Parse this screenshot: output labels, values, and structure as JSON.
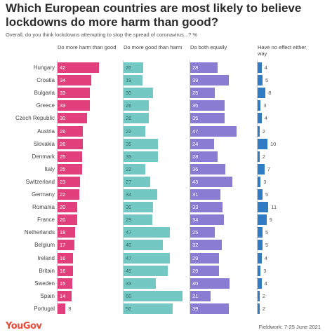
{
  "title": "Which European countries are most likely to believe lockdowns do more harm than good?",
  "subtitle": "Overall, do you think lockdowns attempting to stop the spread of coronavirus...? %",
  "logo": "YouGov",
  "footer": "Fieldwork: 7-25 June 2021",
  "colors": {
    "harm": "#e2407c",
    "good": "#74c8c3",
    "both": "#8a7bd3",
    "noeffect": "#2f7bc4"
  },
  "chart_data": {
    "type": "bar",
    "title": "Which European countries are most likely to believe lockdowns do more harm than good?",
    "categories": [
      "Hungary",
      "Croatia",
      "Bulgaria",
      "Greece",
      "Czech Republic",
      "Austria",
      "Slovakia",
      "Denmark",
      "Italy",
      "Switzerland",
      "Germany",
      "Romania",
      "France",
      "Netherlands",
      "Belgium",
      "Ireland",
      "Britain",
      "Sweden",
      "Spain",
      "Portugal"
    ],
    "series": [
      {
        "name": "Do more harm than good",
        "values": [
          42,
          34,
          33,
          33,
          30,
          26,
          26,
          25,
          25,
          23,
          22,
          20,
          20,
          18,
          17,
          16,
          16,
          15,
          14,
          8
        ]
      },
      {
        "name": "Do more good than harm",
        "values": [
          20,
          19,
          30,
          26,
          26,
          22,
          35,
          35,
          22,
          27,
          34,
          30,
          29,
          47,
          40,
          47,
          45,
          33,
          60,
          50
        ]
      },
      {
        "name": "Do both equally",
        "values": [
          28,
          39,
          25,
          35,
          35,
          47,
          24,
          28,
          36,
          43,
          31,
          33,
          34,
          25,
          32,
          29,
          29,
          40,
          21,
          39
        ]
      },
      {
        "name": "Have no effect either way",
        "values": [
          4,
          5,
          8,
          3,
          4,
          2,
          10,
          2,
          7,
          3,
          5,
          11,
          9,
          5,
          5,
          4,
          3,
          4,
          2,
          2
        ]
      }
    ]
  }
}
